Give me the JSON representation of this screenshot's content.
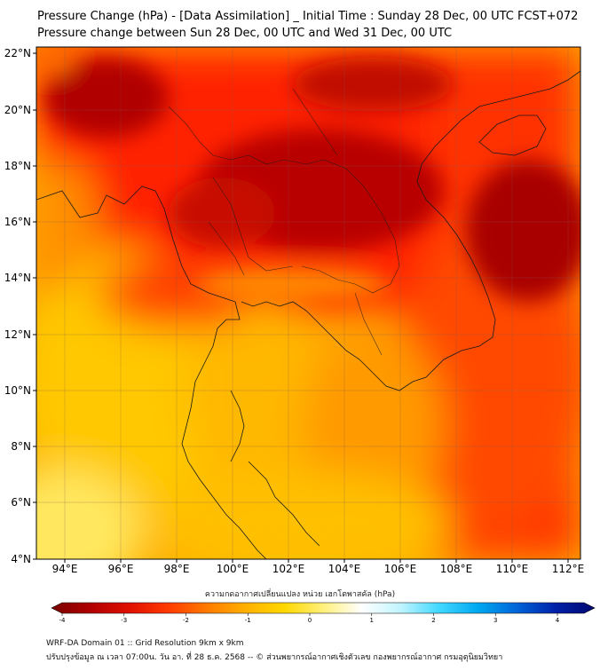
{
  "title_line1": "Pressure Change (hPa) - [Data Assimilation] _ Initial Time : Sunday 28 Dec, 00 UTC FCST+072",
  "title_line2": "Pressure change between Sun 28 Dec, 00 UTC and Wed 31 Dec, 00 UTC",
  "y_ticks": [
    "22°N",
    "20°N",
    "18°N",
    "16°N",
    "14°N",
    "12°N",
    "10°N",
    "8°N",
    "6°N",
    "4°N"
  ],
  "x_ticks": [
    "94°E",
    "96°E",
    "98°E",
    "100°E",
    "102°E",
    "104°E",
    "106°E",
    "108°E",
    "110°E",
    "112°E"
  ],
  "colorbar": {
    "title": "ความกดอากาศเปลี่ยนแปลง หน่วย เฮกโตพาสคัล (hPa)",
    "ticks": [
      "-4",
      "-3",
      "-2",
      "-1",
      "0",
      "1",
      "2",
      "3",
      "4"
    ],
    "min": -4,
    "max": 4,
    "colors": [
      "#7a0000",
      "#b00000",
      "#e01000",
      "#ff3a00",
      "#ff7a00",
      "#ffb000",
      "#ffd800",
      "#fff07a",
      "#ffffff",
      "#c0f4ff",
      "#40d8ff",
      "#00a8f0",
      "#0064d8",
      "#0020a8",
      "#000870"
    ]
  },
  "footer_line1": "WRF-DA Domain 01 :: Grid Resolution 9km x 9km",
  "footer_line2": "ปรับปรุงข้อมูล ณ เวลา 07:00น. วัน อา. ที่ 28 ธ.ค. 2568 -- © ส่วนพยากรณ์อากาศเชิงตัวเลข กองพยากรณ์อากาศ กรมอุตุนิยมวิทยา"
}
